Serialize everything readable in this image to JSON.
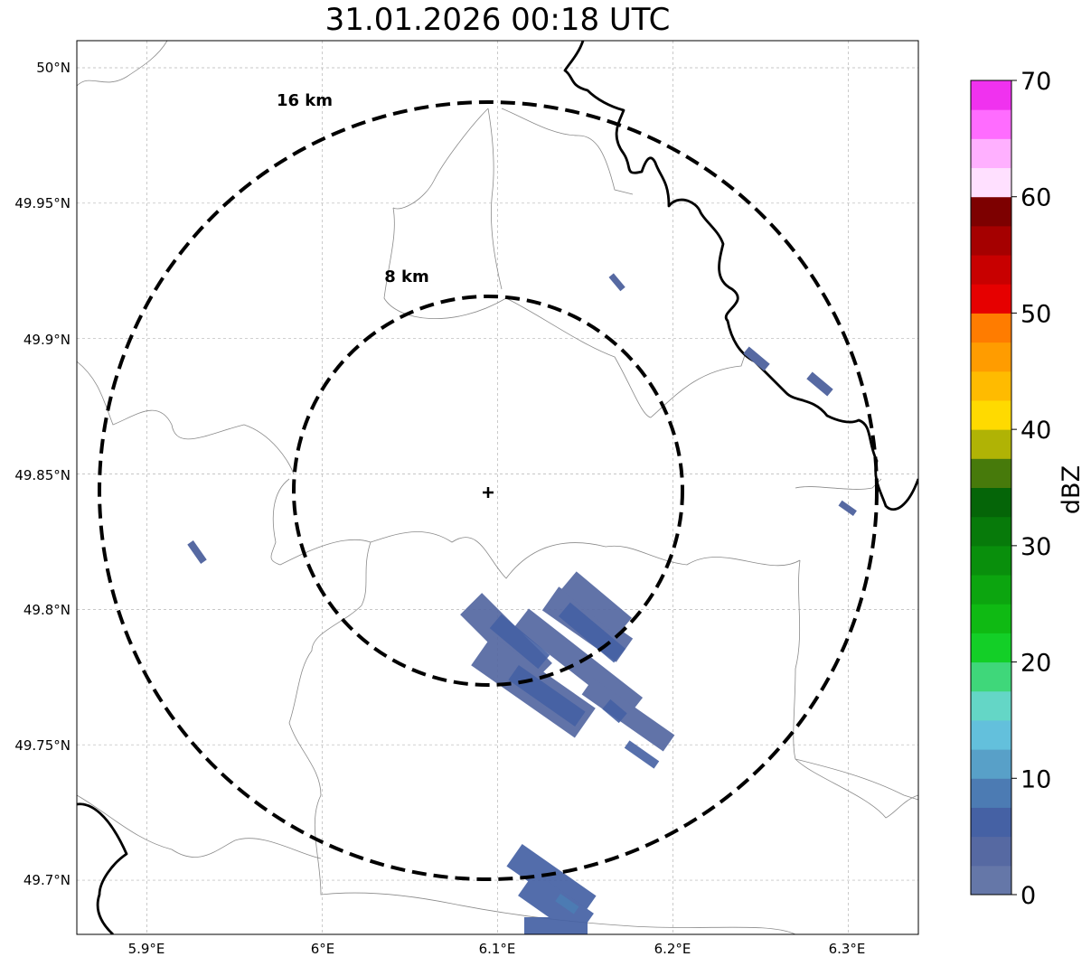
{
  "title": "31.01.2026 00:18 UTC",
  "map": {
    "lon_range": [
      5.86,
      6.34
    ],
    "lat_range": [
      49.68,
      50.01
    ],
    "radar_site": {
      "lon": 6.095,
      "lat": 49.843
    },
    "lon_ticks": [
      {
        "value": 5.9,
        "label": "5.9°E"
      },
      {
        "value": 6.0,
        "label": "6°E"
      },
      {
        "value": 6.1,
        "label": "6.1°E"
      },
      {
        "value": 6.2,
        "label": "6.2°E"
      },
      {
        "value": 6.3,
        "label": "6.3°E"
      }
    ],
    "lat_ticks": [
      {
        "value": 50.0,
        "label": "50°N"
      },
      {
        "value": 49.95,
        "label": "49.95°N"
      },
      {
        "value": 49.9,
        "label": "49.9°N"
      },
      {
        "value": 49.85,
        "label": "49.85°N"
      },
      {
        "value": 49.8,
        "label": "49.8°N"
      },
      {
        "value": 49.75,
        "label": "49.75°N"
      },
      {
        "value": 49.7,
        "label": "49.7°N"
      }
    ],
    "range_rings": [
      {
        "radius_km": 8,
        "label": "8 km"
      },
      {
        "radius_km": 16,
        "label": "16 km"
      }
    ],
    "gridlines": true
  },
  "colorbar": {
    "label": "dBZ",
    "min": 0,
    "max": 70,
    "tick_labels": [
      "0",
      "10",
      "20",
      "30",
      "40",
      "50",
      "60",
      "70"
    ],
    "colors": [
      "#6577a8",
      "#5669a2",
      "#4561a4",
      "#4c7bb3",
      "#58a0c8",
      "#63c0dc",
      "#64d6c6",
      "#3fd77a",
      "#13cf27",
      "#0fba13",
      "#0ca50f",
      "#098f0c",
      "#077a0a",
      "#056508",
      "#477a0b",
      "#b0b305",
      "#ffda00",
      "#ffbb00",
      "#ff9c00",
      "#ff7c00",
      "#e60000",
      "#c80000",
      "#a50000",
      "#7d0000",
      "#ffe0ff",
      "#ffb0ff",
      "#ff6cff",
      "#f032ef"
    ]
  }
}
